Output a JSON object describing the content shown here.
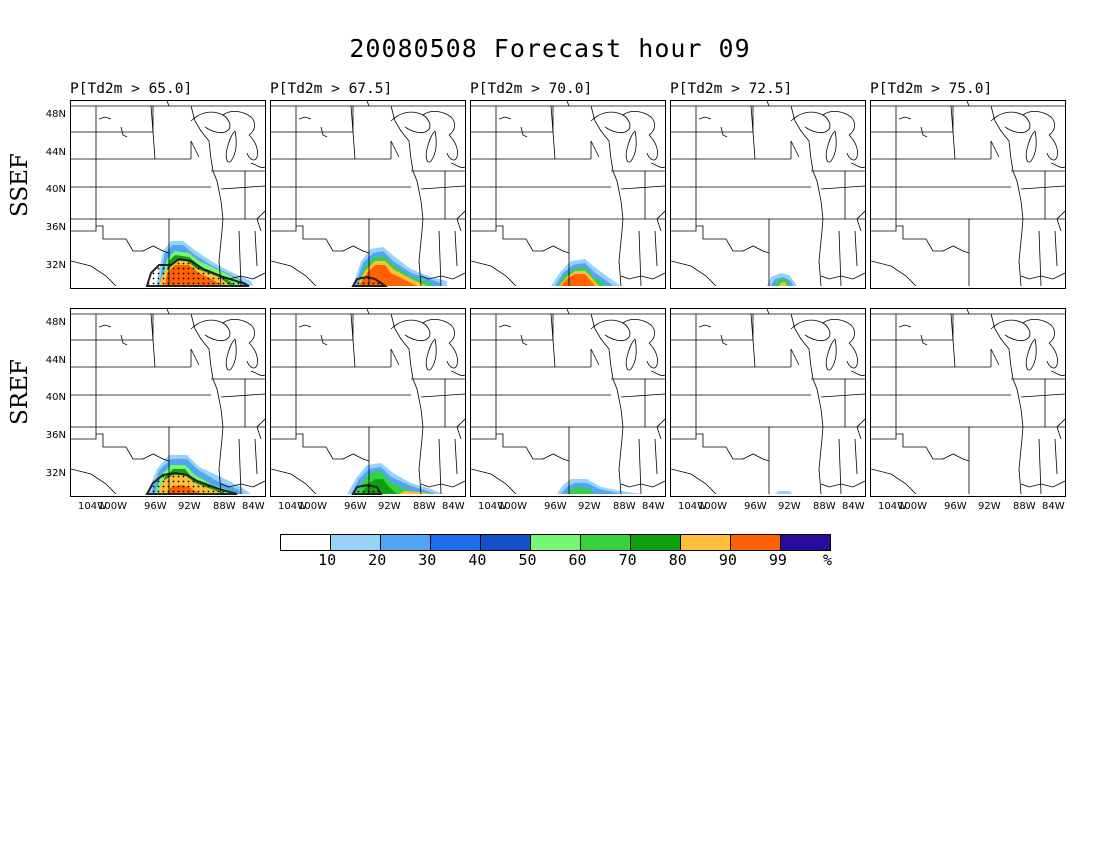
{
  "title": "20080508 Forecast hour 09",
  "columns": [
    {
      "label": "P[Td2m > 65.0]"
    },
    {
      "label": "P[Td2m > 67.5]"
    },
    {
      "label": "P[Td2m > 70.0]"
    },
    {
      "label": "P[Td2m > 72.5]"
    },
    {
      "label": "P[Td2m > 75.0]"
    }
  ],
  "rows": [
    {
      "label": "SSEF"
    },
    {
      "label": "SREF"
    }
  ],
  "lat_ticks": [
    "48N",
    "44N",
    "40N",
    "36N",
    "32N"
  ],
  "lon_ticks": [
    "104W",
    "100W",
    "96W",
    "92W",
    "88W",
    "84W"
  ],
  "colorbar": {
    "labels": [
      "10",
      "20",
      "30",
      "40",
      "50",
      "60",
      "70",
      "80",
      "90",
      "99"
    ],
    "unit": "%",
    "colors": [
      "#ffffff",
      "#96d2fa",
      "#50a5f5",
      "#1e6eeb",
      "#1450c8",
      "#78f573",
      "#37d23c",
      "#0fa00f",
      "#ffbe3c",
      "#ff6000",
      "#2a0c9b"
    ]
  }
}
